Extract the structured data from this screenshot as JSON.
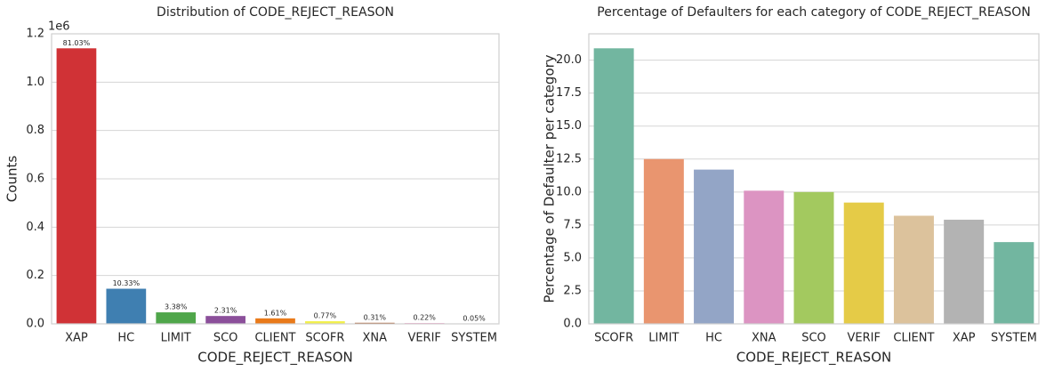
{
  "chart_data": [
    {
      "type": "bar",
      "title": "Distribution of CODE_REJECT_REASON",
      "x_label": "CODE_REJECT_REASON",
      "y_label": "Counts",
      "y_offset_label": "1e6",
      "categories": [
        "XAP",
        "HC",
        "LIMIT",
        "SCO",
        "CLIENT",
        "SCOFR",
        "XNA",
        "VERIF",
        "SYSTEM"
      ],
      "values": [
        1.14,
        0.1453,
        0.0476,
        0.0325,
        0.0227,
        0.0108,
        0.0044,
        0.0031,
        0.0007
      ],
      "annotations": [
        "81.03%",
        "10.33%",
        "3.38%",
        "2.31%",
        "1.61%",
        "0.77%",
        "0.31%",
        "0.22%",
        "0.05%"
      ],
      "colors": [
        "#d03236",
        "#3f7fb1",
        "#4fa64a",
        "#8b4f9a",
        "#e97a1a",
        "#f2f04a",
        "#a65628",
        "#f781bf",
        "#999999"
      ],
      "ylim": [
        0,
        1.2
      ],
      "yticks": [
        {
          "value": 0,
          "label": "0.0"
        },
        0.2,
        0.4,
        0.6,
        0.8,
        {
          "value": 1,
          "label": "1.0"
        },
        1.2
      ],
      "grid": true
    },
    {
      "type": "bar",
      "title": "Percentage of Defaulters for each category of CODE_REJECT_REASON",
      "x_label": "CODE_REJECT_REASON",
      "y_label": "Percentage of Defaulter per category",
      "categories": [
        "SCOFR",
        "LIMIT",
        "HC",
        "XNA",
        "SCO",
        "VERIF",
        "CLIENT",
        "XAP",
        "SYSTEM"
      ],
      "values": [
        20.9,
        12.5,
        11.7,
        10.1,
        10.0,
        9.2,
        8.2,
        7.9,
        6.2
      ],
      "colors": [
        "#72b6a0",
        "#e9956f",
        "#93a5c6",
        "#dc94c2",
        "#a3c95f",
        "#e5cb47",
        "#dcc29c",
        "#b3b3b3",
        "#72b6a0"
      ],
      "ylim": [
        0,
        22
      ],
      "yticks": [
        {
          "value": 0,
          "label": "0.0"
        },
        2.5,
        {
          "value": 5,
          "label": "5.0"
        },
        7.5,
        {
          "value": 10,
          "label": "10.0"
        },
        12.5,
        {
          "value": 15,
          "label": "15.0"
        },
        17.5,
        {
          "value": 20,
          "label": "20.0"
        }
      ],
      "grid": true
    }
  ]
}
